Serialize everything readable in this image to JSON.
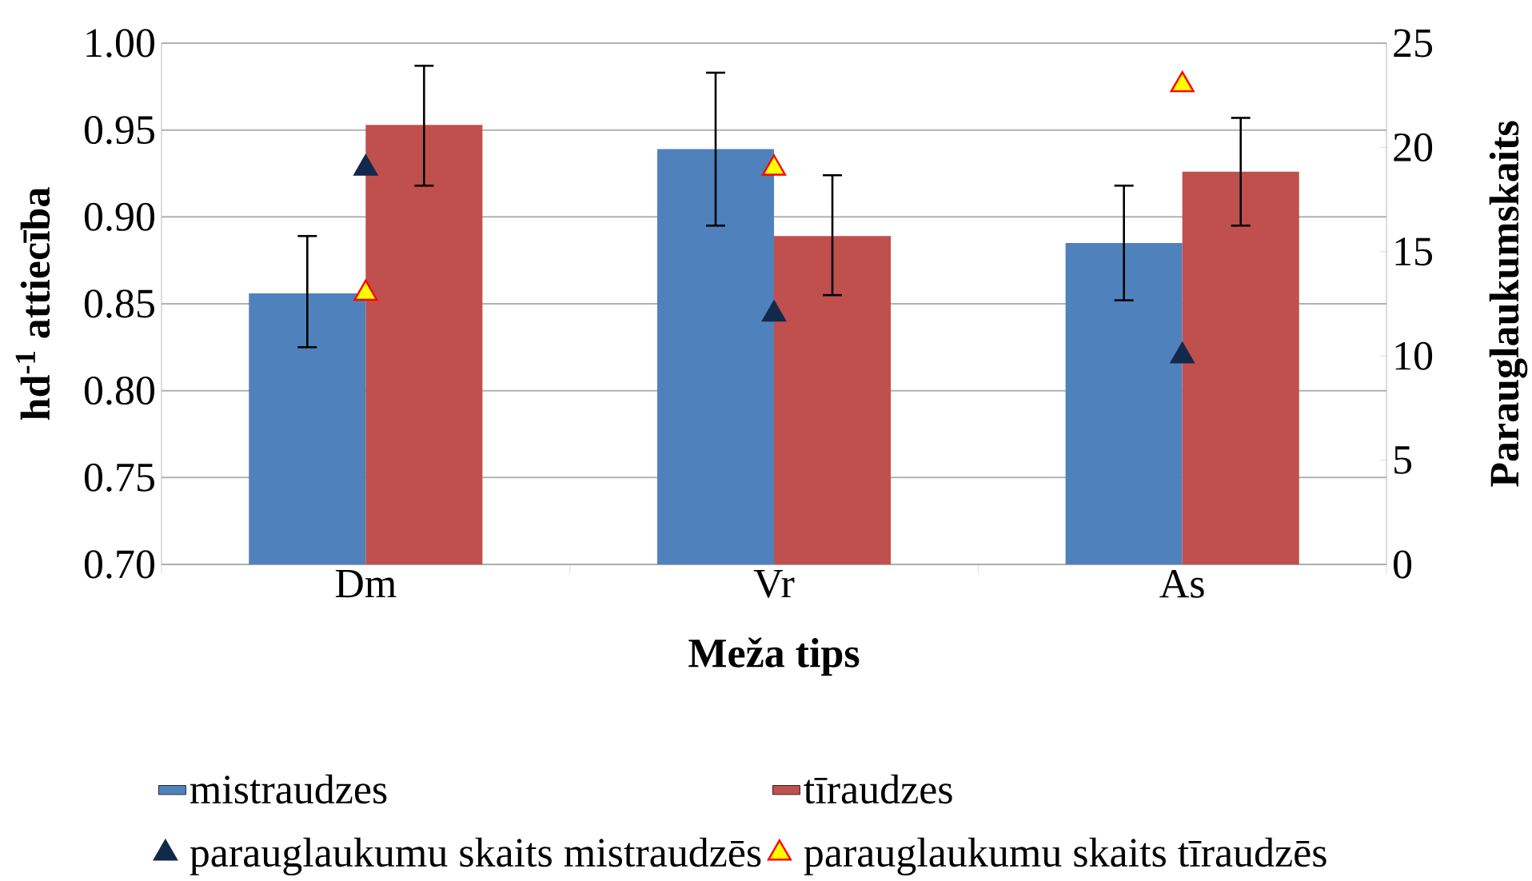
{
  "chart_data": {
    "type": "bar",
    "xlabel": "Meža tips",
    "ylabel": "hd$^{-1}$ attiecība",
    "y2label": "Parauglaukumskaits",
    "categories": [
      "Dm",
      "Vr",
      "As"
    ],
    "ylim": [
      0.7,
      1.0
    ],
    "yticks": [
      {
        "value": 0.7,
        "label": "0.70"
      },
      {
        "value": 0.75,
        "label": "0.75"
      },
      {
        "value": 0.8,
        "label": "0.80"
      },
      {
        "value": 0.85,
        "label": "0.85"
      },
      {
        "value": 0.9,
        "label": "0.90"
      },
      {
        "value": 0.95,
        "label": "0.95"
      },
      {
        "value": 1.0,
        "label": "1.00"
      }
    ],
    "y2lim": [
      0,
      25
    ],
    "y2ticks": [
      0,
      5,
      10,
      15,
      20,
      25
    ],
    "grid": "y",
    "legend": "bottom",
    "series": [
      {
        "name": "mistraudzes",
        "type": "bar",
        "color": "#4f81bd",
        "values": [
          0.856,
          0.939,
          0.885
        ],
        "errors": [
          [
            0.825,
            0.889
          ],
          [
            0.895,
            0.983
          ],
          [
            0.852,
            0.918
          ]
        ]
      },
      {
        "name": "tīraudzes",
        "type": "bar",
        "color": "#c0504d",
        "values": [
          0.953,
          0.889,
          0.926
        ],
        "errors": [
          [
            0.918,
            0.987
          ],
          [
            0.855,
            0.924
          ],
          [
            0.895,
            0.957
          ]
        ]
      },
      {
        "name": "parauglaukumu skaits mistraudzēs",
        "type": "scatter",
        "axis": "y2",
        "marker": "triangle",
        "color": "#13294b",
        "x": [
          "Dm",
          "Vr",
          "As"
        ],
        "values": [
          19,
          12,
          10
        ]
      },
      {
        "name": "parauglaukumu skaits tīraudzēs",
        "type": "scatter",
        "axis": "y2",
        "marker": "triangle",
        "color": "#ffff00",
        "x": [
          "Dm",
          "Vr",
          "As"
        ],
        "values": [
          13,
          19,
          23
        ]
      }
    ]
  }
}
